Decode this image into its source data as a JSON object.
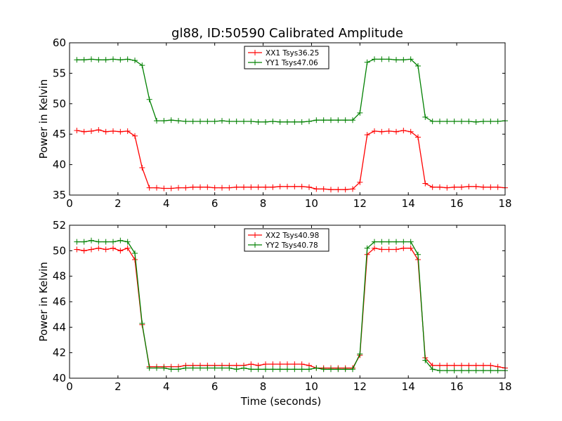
{
  "figure": {
    "title": "gl88, ID:50590 Calibrated Amplitude"
  },
  "chart_data": [
    {
      "type": "line",
      "title": "gl88, ID:50590 Calibrated Amplitude",
      "xlabel": "",
      "ylabel": "Power in Kelvin",
      "xlim": [
        0,
        18
      ],
      "ylim": [
        35,
        60
      ],
      "xticks": [
        0,
        2,
        4,
        6,
        8,
        10,
        12,
        14,
        16,
        18
      ],
      "yticks": [
        35,
        40,
        45,
        50,
        55,
        60
      ],
      "grid": false,
      "legend_position": "top-center",
      "series": [
        {
          "name": "XX1 Tsys36.25",
          "color": "#ff0000",
          "x": [
            0.3,
            0.6,
            0.9,
            1.2,
            1.5,
            1.8,
            2.1,
            2.4,
            2.7,
            3.0,
            3.3,
            3.6,
            3.9,
            4.2,
            4.5,
            4.8,
            5.1,
            5.4,
            5.7,
            6.0,
            6.3,
            6.6,
            6.9,
            7.2,
            7.5,
            7.8,
            8.1,
            8.4,
            8.7,
            9.0,
            9.3,
            9.6,
            9.9,
            10.2,
            10.5,
            10.8,
            11.1,
            11.4,
            11.7,
            12.0,
            12.3,
            12.6,
            12.9,
            13.2,
            13.5,
            13.8,
            14.1,
            14.4,
            14.7,
            15.0,
            15.3,
            15.6,
            15.9,
            16.2,
            16.5,
            16.8,
            17.1,
            17.4,
            17.7,
            18.0
          ],
          "y": [
            45.6,
            45.4,
            45.5,
            45.7,
            45.4,
            45.5,
            45.4,
            45.5,
            44.7,
            39.5,
            36.2,
            36.2,
            36.1,
            36.1,
            36.2,
            36.2,
            36.3,
            36.3,
            36.3,
            36.2,
            36.2,
            36.2,
            36.3,
            36.3,
            36.3,
            36.3,
            36.3,
            36.3,
            36.4,
            36.4,
            36.4,
            36.4,
            36.3,
            36.0,
            36.0,
            35.9,
            35.9,
            35.9,
            36.0,
            37.1,
            44.9,
            45.5,
            45.4,
            45.5,
            45.4,
            45.6,
            45.4,
            44.5,
            36.9,
            36.3,
            36.3,
            36.2,
            36.3,
            36.3,
            36.4,
            36.4,
            36.3,
            36.3,
            36.3,
            36.2
          ]
        },
        {
          "name": "YY1 Tsys47.06",
          "color": "#008000",
          "x": [
            0.3,
            0.6,
            0.9,
            1.2,
            1.5,
            1.8,
            2.1,
            2.4,
            2.7,
            3.0,
            3.3,
            3.6,
            3.9,
            4.2,
            4.5,
            4.8,
            5.1,
            5.4,
            5.7,
            6.0,
            6.3,
            6.6,
            6.9,
            7.2,
            7.5,
            7.8,
            8.1,
            8.4,
            8.7,
            9.0,
            9.3,
            9.6,
            9.9,
            10.2,
            10.5,
            10.8,
            11.1,
            11.4,
            11.7,
            12.0,
            12.3,
            12.6,
            12.9,
            13.2,
            13.5,
            13.8,
            14.1,
            14.4,
            14.7,
            15.0,
            15.3,
            15.6,
            15.9,
            16.2,
            16.5,
            16.8,
            17.1,
            17.4,
            17.7,
            18.0
          ],
          "y": [
            57.2,
            57.2,
            57.3,
            57.2,
            57.2,
            57.3,
            57.2,
            57.3,
            57.1,
            56.3,
            50.7,
            47.2,
            47.2,
            47.3,
            47.2,
            47.1,
            47.1,
            47.1,
            47.1,
            47.1,
            47.2,
            47.1,
            47.1,
            47.1,
            47.1,
            47.0,
            47.0,
            47.1,
            47.0,
            47.0,
            47.0,
            47.0,
            47.1,
            47.3,
            47.3,
            47.3,
            47.3,
            47.3,
            47.3,
            48.5,
            56.8,
            57.3,
            57.3,
            57.3,
            57.2,
            57.2,
            57.3,
            56.2,
            47.8,
            47.1,
            47.1,
            47.1,
            47.1,
            47.1,
            47.1,
            47.0,
            47.1,
            47.1,
            47.1,
            47.2
          ]
        }
      ]
    },
    {
      "type": "line",
      "title": "",
      "xlabel": "Time (seconds)",
      "ylabel": "Power in Kelvin",
      "xlim": [
        0,
        18
      ],
      "ylim": [
        40,
        52
      ],
      "xticks": [
        0,
        2,
        4,
        6,
        8,
        10,
        12,
        14,
        16,
        18
      ],
      "yticks": [
        40,
        42,
        44,
        46,
        48,
        50,
        52
      ],
      "grid": false,
      "legend_position": "top-center",
      "series": [
        {
          "name": "XX2 Tsys40.98",
          "color": "#ff0000",
          "x": [
            0.3,
            0.6,
            0.9,
            1.2,
            1.5,
            1.8,
            2.1,
            2.4,
            2.7,
            3.0,
            3.3,
            3.6,
            3.9,
            4.2,
            4.5,
            4.8,
            5.1,
            5.4,
            5.7,
            6.0,
            6.3,
            6.6,
            6.9,
            7.2,
            7.5,
            7.8,
            8.1,
            8.4,
            8.7,
            9.0,
            9.3,
            9.6,
            9.9,
            10.2,
            10.5,
            10.8,
            11.1,
            11.4,
            11.7,
            12.0,
            12.3,
            12.6,
            12.9,
            13.2,
            13.5,
            13.8,
            14.1,
            14.4,
            14.7,
            15.0,
            15.3,
            15.6,
            15.9,
            16.2,
            16.5,
            16.8,
            17.1,
            17.4,
            17.7,
            18.0
          ],
          "y": [
            50.1,
            50.0,
            50.1,
            50.2,
            50.1,
            50.2,
            50.0,
            50.2,
            49.3,
            44.2,
            40.9,
            40.9,
            40.9,
            40.9,
            40.9,
            41.0,
            41.0,
            41.0,
            41.0,
            41.0,
            41.0,
            41.0,
            41.0,
            41.0,
            41.1,
            41.0,
            41.1,
            41.1,
            41.1,
            41.1,
            41.1,
            41.1,
            41.0,
            40.8,
            40.8,
            40.8,
            40.8,
            40.8,
            40.8,
            41.8,
            49.7,
            50.2,
            50.1,
            50.1,
            50.1,
            50.2,
            50.2,
            49.3,
            41.6,
            41.0,
            41.0,
            41.0,
            41.0,
            41.0,
            41.0,
            41.0,
            41.0,
            41.0,
            40.9,
            40.8
          ]
        },
        {
          "name": "YY2 Tsys40.78",
          "color": "#008000",
          "x": [
            0.3,
            0.6,
            0.9,
            1.2,
            1.5,
            1.8,
            2.1,
            2.4,
            2.7,
            3.0,
            3.3,
            3.6,
            3.9,
            4.2,
            4.5,
            4.8,
            5.1,
            5.4,
            5.7,
            6.0,
            6.3,
            6.6,
            6.9,
            7.2,
            7.5,
            7.8,
            8.1,
            8.4,
            8.7,
            9.0,
            9.3,
            9.6,
            9.9,
            10.2,
            10.5,
            10.8,
            11.1,
            11.4,
            11.7,
            12.0,
            12.3,
            12.6,
            12.9,
            13.2,
            13.5,
            13.8,
            14.1,
            14.4,
            14.7,
            15.0,
            15.3,
            15.6,
            15.9,
            16.2,
            16.5,
            16.8,
            17.1,
            17.4,
            17.7,
            18.0
          ],
          "y": [
            50.7,
            50.7,
            50.8,
            50.7,
            50.7,
            50.7,
            50.8,
            50.7,
            49.8,
            44.3,
            40.8,
            40.8,
            40.8,
            40.7,
            40.7,
            40.8,
            40.8,
            40.8,
            40.8,
            40.8,
            40.8,
            40.8,
            40.7,
            40.8,
            40.7,
            40.7,
            40.7,
            40.7,
            40.7,
            40.7,
            40.7,
            40.7,
            40.7,
            40.8,
            40.7,
            40.7,
            40.7,
            40.7,
            40.7,
            41.9,
            50.2,
            50.7,
            50.7,
            50.7,
            50.7,
            50.7,
            50.7,
            49.7,
            41.4,
            40.7,
            40.6,
            40.6,
            40.6,
            40.6,
            40.6,
            40.6,
            40.6,
            40.6,
            40.6,
            40.6
          ]
        }
      ]
    }
  ]
}
